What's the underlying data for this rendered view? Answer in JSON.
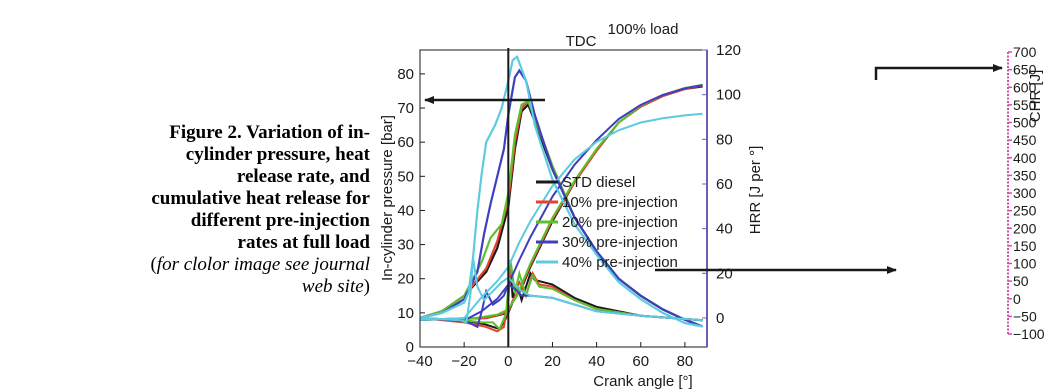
{
  "caption": {
    "title": "Figure 2. Variation of in-cylinder pressure, heat release rate, and cumulative heat release for different pre-injection rates at full load",
    "note_open": "(",
    "note_italic": "for clolor image see journal web site",
    "note_close": ")"
  },
  "chart_data": {
    "type": "line",
    "title": "100% load",
    "annotation": "TDC",
    "xlabel": "Crank angle [°]",
    "ylabel_left": "In-cylinder pressure [bar]",
    "ylabel_right": "HRR [J per °]",
    "ylabel_right2": "CHR [J]",
    "xlim": [
      -40,
      90
    ],
    "ylim_left": [
      0,
      87
    ],
    "ylim_right": [
      -13,
      120
    ],
    "ylim_right2": [
      -100,
      700
    ],
    "x_ticks": [
      "−40",
      "−20",
      "0",
      "20",
      "40",
      "60",
      "80"
    ],
    "y_left_ticks": [
      "0",
      "10",
      "20",
      "30",
      "40",
      "50",
      "60",
      "70",
      "80"
    ],
    "y_right_ticks": [
      "0",
      "20",
      "40",
      "60",
      "80",
      "100",
      "120"
    ],
    "y_right2_ticks": [
      "−100",
      "−50",
      "0",
      "50",
      "100",
      "150",
      "200",
      "250",
      "300",
      "350",
      "400",
      "450",
      "500",
      "550",
      "600",
      "650",
      "700"
    ],
    "colors": {
      "std": "#1a1a1a",
      "p10": "#e8412c",
      "p20": "#5cc12c",
      "p30": "#3e3ec0",
      "p40": "#5ccbe0",
      "right_axis": "#6a5fb4",
      "chr_axis": "#d44fa8"
    },
    "series": [
      {
        "name": "STD diesel",
        "color_key": "std",
        "pressure": [
          [
            -40,
            8.5
          ],
          [
            -30,
            10.5
          ],
          [
            -20,
            15
          ],
          [
            -10,
            22
          ],
          [
            -5,
            29
          ],
          [
            0,
            41
          ],
          [
            3,
            58
          ],
          [
            6,
            69
          ],
          [
            9,
            71
          ],
          [
            12,
            66
          ],
          [
            20,
            52
          ],
          [
            30,
            38
          ],
          [
            40,
            28
          ],
          [
            50,
            20
          ],
          [
            60,
            15
          ],
          [
            70,
            11
          ],
          [
            80,
            8
          ],
          [
            88,
            6
          ]
        ],
        "hrr": [
          [
            -40,
            0
          ],
          [
            -20,
            -1
          ],
          [
            -10,
            -3
          ],
          [
            -4,
            -5
          ],
          [
            -1,
            0
          ],
          [
            1,
            22
          ],
          [
            2,
            9
          ],
          [
            4,
            15
          ],
          [
            6,
            8
          ],
          [
            10,
            20
          ],
          [
            12,
            17
          ],
          [
            20,
            15
          ],
          [
            30,
            9
          ],
          [
            40,
            5
          ],
          [
            60,
            1
          ],
          [
            88,
            -1
          ]
        ],
        "chr": [
          [
            -40,
            -60
          ],
          [
            -10,
            -55
          ],
          [
            0,
            -40
          ],
          [
            2,
            -10
          ],
          [
            6,
            30
          ],
          [
            10,
            90
          ],
          [
            20,
            220
          ],
          [
            30,
            330
          ],
          [
            40,
            420
          ],
          [
            50,
            500
          ],
          [
            60,
            545
          ],
          [
            70,
            575
          ],
          [
            80,
            595
          ],
          [
            88,
            602
          ]
        ]
      },
      {
        "name": "10% pre-injection",
        "color_key": "p10",
        "pressure": [
          [
            -40,
            8.5
          ],
          [
            -30,
            10.5
          ],
          [
            -20,
            15
          ],
          [
            -10,
            23
          ],
          [
            -5,
            31
          ],
          [
            0,
            43
          ],
          [
            3,
            60
          ],
          [
            6,
            70
          ],
          [
            9,
            72
          ],
          [
            12,
            67
          ],
          [
            20,
            53
          ],
          [
            30,
            38
          ],
          [
            40,
            28
          ],
          [
            50,
            20
          ],
          [
            60,
            15
          ],
          [
            70,
            11
          ],
          [
            80,
            8
          ],
          [
            88,
            6
          ]
        ],
        "hrr": [
          [
            -40,
            0
          ],
          [
            -20,
            -2
          ],
          [
            -10,
            -4
          ],
          [
            -5,
            -6
          ],
          [
            -2,
            -4
          ],
          [
            0,
            8
          ],
          [
            1,
            23
          ],
          [
            3,
            12
          ],
          [
            5,
            16
          ],
          [
            8,
            10
          ],
          [
            11,
            20
          ],
          [
            14,
            15
          ],
          [
            20,
            14
          ],
          [
            30,
            8
          ],
          [
            40,
            4
          ],
          [
            60,
            1
          ],
          [
            88,
            -1
          ]
        ],
        "chr": [
          [
            -40,
            -60
          ],
          [
            -10,
            -55
          ],
          [
            0,
            -38
          ],
          [
            2,
            -5
          ],
          [
            6,
            35
          ],
          [
            10,
            95
          ],
          [
            20,
            225
          ],
          [
            30,
            330
          ],
          [
            40,
            420
          ],
          [
            50,
            500
          ],
          [
            60,
            545
          ],
          [
            70,
            575
          ],
          [
            80,
            595
          ],
          [
            88,
            605
          ]
        ]
      },
      {
        "name": "20% pre-injection",
        "color_key": "p20",
        "pressure": [
          [
            -40,
            8.5
          ],
          [
            -30,
            10.5
          ],
          [
            -20,
            15
          ],
          [
            -12,
            25
          ],
          [
            -8,
            32
          ],
          [
            -3,
            36
          ],
          [
            0,
            45
          ],
          [
            3,
            62
          ],
          [
            6,
            71
          ],
          [
            9,
            72
          ],
          [
            12,
            67
          ],
          [
            20,
            53
          ],
          [
            30,
            38
          ],
          [
            40,
            28
          ],
          [
            50,
            20
          ],
          [
            60,
            15
          ],
          [
            70,
            11
          ],
          [
            80,
            8
          ],
          [
            88,
            6
          ]
        ],
        "hrr": [
          [
            -40,
            0
          ],
          [
            -20,
            -1
          ],
          [
            -12,
            -2
          ],
          [
            -7,
            -2
          ],
          [
            -4,
            -5
          ],
          [
            -1,
            2
          ],
          [
            1,
            26
          ],
          [
            3,
            11
          ],
          [
            5,
            20
          ],
          [
            8,
            10
          ],
          [
            11,
            19
          ],
          [
            14,
            14
          ],
          [
            20,
            13
          ],
          [
            30,
            8
          ],
          [
            40,
            4
          ],
          [
            60,
            1
          ],
          [
            88,
            -1
          ]
        ],
        "chr": [
          [
            -40,
            -60
          ],
          [
            -15,
            -55
          ],
          [
            -5,
            -45
          ],
          [
            0,
            -30
          ],
          [
            4,
            10
          ],
          [
            10,
            100
          ],
          [
            20,
            230
          ],
          [
            30,
            335
          ],
          [
            40,
            425
          ],
          [
            50,
            500
          ],
          [
            60,
            548
          ],
          [
            70,
            578
          ],
          [
            80,
            598
          ],
          [
            88,
            607
          ]
        ]
      },
      {
        "name": "30% pre-injection",
        "color_key": "p30",
        "pressure": [
          [
            -40,
            8.5
          ],
          [
            -30,
            10
          ],
          [
            -20,
            14
          ],
          [
            -14,
            22
          ],
          [
            -11,
            33
          ],
          [
            -8,
            42
          ],
          [
            -5,
            50
          ],
          [
            -2,
            58
          ],
          [
            0,
            68
          ],
          [
            3,
            79
          ],
          [
            5,
            81
          ],
          [
            8,
            78
          ],
          [
            12,
            68
          ],
          [
            20,
            52
          ],
          [
            30,
            38
          ],
          [
            40,
            28
          ],
          [
            50,
            20
          ],
          [
            60,
            15
          ],
          [
            70,
            11
          ],
          [
            80,
            8
          ],
          [
            88,
            6
          ]
        ],
        "hrr": [
          [
            -40,
            0
          ],
          [
            -25,
            -1
          ],
          [
            -18,
            -2
          ],
          [
            -14,
            -4
          ],
          [
            -12,
            3
          ],
          [
            -10,
            12
          ],
          [
            -7,
            6
          ],
          [
            -4,
            8
          ],
          [
            -2,
            10
          ],
          [
            0,
            15
          ],
          [
            3,
            13
          ],
          [
            6,
            10
          ],
          [
            10,
            10
          ],
          [
            20,
            9
          ],
          [
            30,
            6
          ],
          [
            40,
            3
          ],
          [
            60,
            1
          ],
          [
            88,
            -1
          ]
        ],
        "chr": [
          [
            -40,
            -60
          ],
          [
            -18,
            -55
          ],
          [
            -12,
            -35
          ],
          [
            -5,
            0
          ],
          [
            0,
            40
          ],
          [
            5,
            110
          ],
          [
            10,
            175
          ],
          [
            20,
            290
          ],
          [
            30,
            380
          ],
          [
            40,
            450
          ],
          [
            50,
            510
          ],
          [
            60,
            550
          ],
          [
            70,
            578
          ],
          [
            80,
            597
          ],
          [
            88,
            606
          ]
        ]
      },
      {
        "name": "40% pre-injection",
        "color_key": "p40",
        "pressure": [
          [
            -40,
            8.5
          ],
          [
            -30,
            10
          ],
          [
            -20,
            13
          ],
          [
            -18,
            16
          ],
          [
            -16,
            26
          ],
          [
            -14,
            40
          ],
          [
            -12,
            51
          ],
          [
            -10,
            60
          ],
          [
            -6,
            65
          ],
          [
            -3,
            70
          ],
          [
            0,
            78
          ],
          [
            2,
            84
          ],
          [
            4,
            85
          ],
          [
            8,
            78
          ],
          [
            12,
            65
          ],
          [
            20,
            49
          ],
          [
            30,
            36
          ],
          [
            40,
            27
          ],
          [
            50,
            19
          ],
          [
            60,
            14
          ],
          [
            70,
            10
          ],
          [
            80,
            7
          ],
          [
            88,
            6
          ]
        ],
        "hrr": [
          [
            -40,
            0
          ],
          [
            -22,
            -1
          ],
          [
            -19,
            -2
          ],
          [
            -17,
            12
          ],
          [
            -16,
            27
          ],
          [
            -14,
            14
          ],
          [
            -11,
            8
          ],
          [
            -7,
            12
          ],
          [
            -3,
            16
          ],
          [
            0,
            18
          ],
          [
            3,
            15
          ],
          [
            6,
            12
          ],
          [
            10,
            10
          ],
          [
            20,
            9
          ],
          [
            30,
            6
          ],
          [
            40,
            3
          ],
          [
            60,
            1
          ],
          [
            88,
            -1
          ]
        ],
        "chr": [
          [
            -40,
            -60
          ],
          [
            -20,
            -55
          ],
          [
            -16,
            -25
          ],
          [
            -12,
            5
          ],
          [
            -5,
            50
          ],
          [
            0,
            90
          ],
          [
            5,
            160
          ],
          [
            10,
            220
          ],
          [
            20,
            320
          ],
          [
            30,
            395
          ],
          [
            40,
            445
          ],
          [
            50,
            478
          ],
          [
            60,
            500
          ],
          [
            70,
            512
          ],
          [
            80,
            520
          ],
          [
            88,
            525
          ]
        ]
      }
    ]
  }
}
